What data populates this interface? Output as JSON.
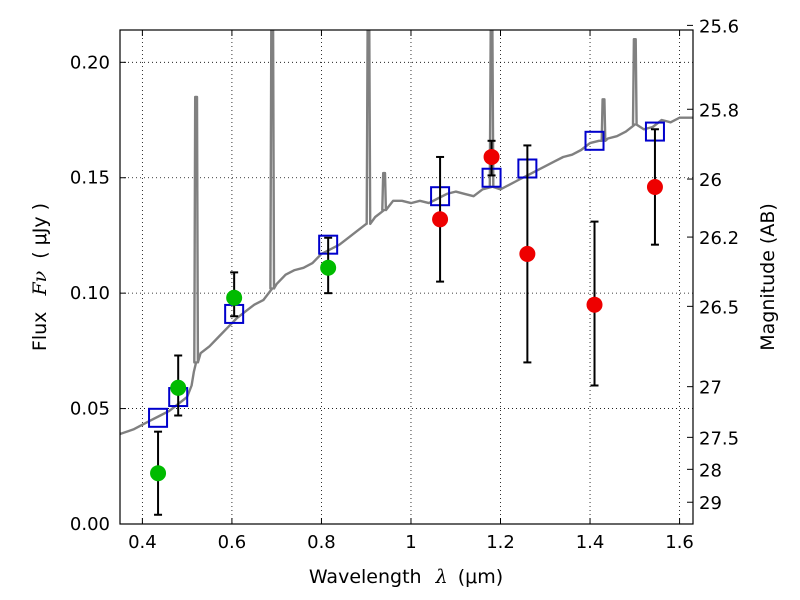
{
  "chart_data": {
    "type": "scatter",
    "xlabel_prefix": "Wavelength",
    "xlabel_symbol": "λ",
    "xlabel_unit": "(μm)",
    "ylabel_prefix": "Flux",
    "ylabel_symbol": "Fν",
    "ylabel_unit": "( μJy )",
    "y2label": "Magnitude (AB)",
    "xlim": [
      0.35,
      1.63
    ],
    "ylim": [
      0.0,
      0.214
    ],
    "grid": true,
    "x_ticks": [
      {
        "value": 0.4,
        "label": "0.4"
      },
      {
        "value": 0.6,
        "label": "0.6"
      },
      {
        "value": 0.8,
        "label": "0.8"
      },
      {
        "value": 1.0,
        "label": "1"
      },
      {
        "value": 1.2,
        "label": "1.2"
      },
      {
        "value": 1.4,
        "label": "1.4"
      },
      {
        "value": 1.6,
        "label": "1.6"
      }
    ],
    "y_ticks": [
      {
        "value": 0.0,
        "label": "0.00"
      },
      {
        "value": 0.05,
        "label": "0.05"
      },
      {
        "value": 0.1,
        "label": "0.10"
      },
      {
        "value": 0.15,
        "label": "0.15"
      },
      {
        "value": 0.2,
        "label": "0.20"
      }
    ],
    "mag_ticks": [
      {
        "value": 25.6,
        "label": "25.6"
      },
      {
        "value": 25.8,
        "label": "25.8"
      },
      {
        "value": 26.0,
        "label": "26"
      },
      {
        "value": 26.2,
        "label": "26.2"
      },
      {
        "value": 26.5,
        "label": "26.5"
      },
      {
        "value": 27.0,
        "label": "27"
      },
      {
        "value": 27.5,
        "label": "27.5"
      },
      {
        "value": 28.0,
        "label": "28"
      },
      {
        "value": 29.0,
        "label": "29"
      }
    ],
    "series": [
      {
        "name": "model-spectrum",
        "kind": "line",
        "color": "#808080",
        "x": [
          0.35,
          0.38,
          0.4,
          0.42,
          0.44,
          0.46,
          0.48,
          0.5,
          0.51,
          0.515,
          0.52,
          0.53,
          0.55,
          0.57,
          0.59,
          0.61,
          0.63,
          0.65,
          0.67,
          0.69,
          0.7,
          0.72,
          0.74,
          0.76,
          0.78,
          0.8,
          0.82,
          0.84,
          0.86,
          0.88,
          0.9,
          0.92,
          0.94,
          0.96,
          0.98,
          1.0,
          1.02,
          1.04,
          1.06,
          1.08,
          1.1,
          1.12,
          1.14,
          1.16,
          1.18,
          1.2,
          1.22,
          1.24,
          1.26,
          1.28,
          1.3,
          1.32,
          1.34,
          1.36,
          1.38,
          1.4,
          1.42,
          1.44,
          1.46,
          1.48,
          1.5,
          1.52,
          1.54,
          1.56,
          1.58,
          1.6,
          1.63
        ],
        "y": [
          0.039,
          0.041,
          0.043,
          0.045,
          0.047,
          0.049,
          0.052,
          0.055,
          0.06,
          0.066,
          0.07,
          0.074,
          0.077,
          0.081,
          0.085,
          0.089,
          0.092,
          0.095,
          0.097,
          0.102,
          0.104,
          0.108,
          0.11,
          0.111,
          0.113,
          0.117,
          0.119,
          0.121,
          0.124,
          0.127,
          0.13,
          0.133,
          0.136,
          0.14,
          0.14,
          0.139,
          0.14,
          0.139,
          0.141,
          0.143,
          0.144,
          0.143,
          0.142,
          0.145,
          0.146,
          0.145,
          0.147,
          0.149,
          0.151,
          0.153,
          0.155,
          0.157,
          0.159,
          0.16,
          0.162,
          0.165,
          0.166,
          0.167,
          0.168,
          0.17,
          0.173,
          0.171,
          0.172,
          0.175,
          0.174,
          0.176,
          0.176
        ],
        "peaks": [
          {
            "x": 0.52,
            "y": 0.185
          },
          {
            "x": 0.69,
            "y": 0.214
          },
          {
            "x": 0.905,
            "y": 0.214
          },
          {
            "x": 0.94,
            "y": 0.152
          },
          {
            "x": 1.18,
            "y": 0.214
          },
          {
            "x": 1.43,
            "y": 0.184
          },
          {
            "x": 1.5,
            "y": 0.21
          }
        ]
      },
      {
        "name": "model-photometry",
        "kind": "open-square",
        "color": "#0000cc",
        "x": [
          0.435,
          0.48,
          0.605,
          0.815,
          1.065,
          1.18,
          1.26,
          1.41,
          1.545
        ],
        "y": [
          0.046,
          0.055,
          0.091,
          0.121,
          0.142,
          0.15,
          0.154,
          0.166,
          0.17
        ]
      },
      {
        "name": "observed-green",
        "kind": "filled-circle",
        "color": "#00bb00",
        "x": [
          0.435,
          0.48,
          0.605,
          0.815
        ],
        "y": [
          0.022,
          0.059,
          0.098,
          0.111
        ],
        "yerr_low": [
          0.018,
          0.012,
          0.008,
          0.011
        ],
        "yerr_high": [
          0.018,
          0.014,
          0.011,
          0.013
        ]
      },
      {
        "name": "observed-red",
        "kind": "filled-circle",
        "color": "#ee0000",
        "x": [
          1.065,
          1.18,
          1.26,
          1.41,
          1.545
        ],
        "y": [
          0.132,
          0.159,
          0.117,
          0.095,
          0.146
        ],
        "yerr_low": [
          0.027,
          0.008,
          0.047,
          0.035,
          0.025
        ],
        "yerr_high": [
          0.027,
          0.007,
          0.047,
          0.036,
          0.025
        ]
      }
    ]
  }
}
